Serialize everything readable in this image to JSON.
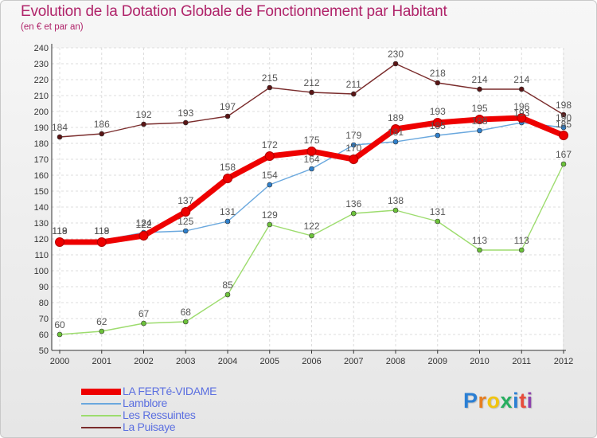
{
  "header": {
    "title": "Evolution de la Dotation Globale de Fonctionnement par Habitant",
    "subtitle": "(en € et par an)"
  },
  "logo": {
    "text": "Proxiti",
    "letters": [
      "P",
      "r",
      "o",
      "x",
      "i",
      "t",
      "i"
    ],
    "colors": [
      "#2b7fd4",
      "#e67e22",
      "#f1c40f",
      "#27ae60",
      "#2b7fd4",
      "#e74c3c",
      "#8e44ad"
    ]
  },
  "chart_data": {
    "type": "line",
    "title": "Evolution de la Dotation Globale de Fonctionnement par Habitant",
    "subtitle": "(en € et par an)",
    "x": [
      2000,
      2001,
      2002,
      2003,
      2004,
      2005,
      2006,
      2007,
      2008,
      2009,
      2010,
      2011,
      2012
    ],
    "ylim": [
      50,
      240
    ],
    "yticks": [
      50,
      60,
      70,
      80,
      90,
      100,
      110,
      120,
      130,
      140,
      150,
      160,
      170,
      180,
      190,
      200,
      210,
      220,
      230,
      240
    ],
    "grid": true,
    "legend_position": "bottom-left",
    "series": [
      {
        "name": "La Puisaye",
        "color": "#7a2c2c",
        "marker": "#5a1515",
        "values": [
          184,
          186,
          192,
          193,
          197,
          215,
          212,
          211,
          230,
          218,
          214,
          214,
          198
        ]
      },
      {
        "name": "Les Ressuintes",
        "color": "#9ddc6e",
        "marker": "#6cc23a",
        "values": [
          60,
          62,
          67,
          68,
          85,
          129,
          122,
          136,
          138,
          131,
          113,
          113,
          167
        ]
      },
      {
        "name": "Lamblore",
        "color": "#6aa8de",
        "marker": "#2f80cc",
        "values": [
          119,
          119,
          124,
          125,
          131,
          154,
          164,
          179,
          181,
          185,
          188,
          193,
          190
        ]
      },
      {
        "name": "LA FERTé-VIDAME",
        "color": "#ee0000",
        "marker": "#ee0000",
        "values": [
          118,
          118,
          122,
          137,
          158,
          172,
          175,
          170,
          189,
          193,
          195,
          196,
          185
        ]
      }
    ]
  }
}
